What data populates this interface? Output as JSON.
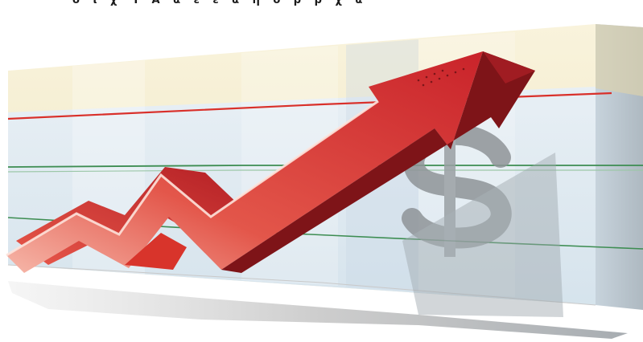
{
  "image": {
    "top_strip_text": "ὃ ῖ χ Ἴ Ἆ ἃ ὲ ἓ ἅ ἡ ο ρ ρ χ ἃ",
    "colors": {
      "arrow_face": "#d93a2e",
      "arrow_light": "#f3a293",
      "arrow_dark": "#7e1418",
      "panel_cream": "#f7f0d2",
      "panel_blue": "#dce9f4",
      "line_red": "#d9302a",
      "line_green": "#3d8d52",
      "dollar_gray": "#8f9498"
    },
    "icons": [
      "rising-arrow",
      "dollar-sign",
      "bar-panels",
      "grid-lines"
    ]
  }
}
